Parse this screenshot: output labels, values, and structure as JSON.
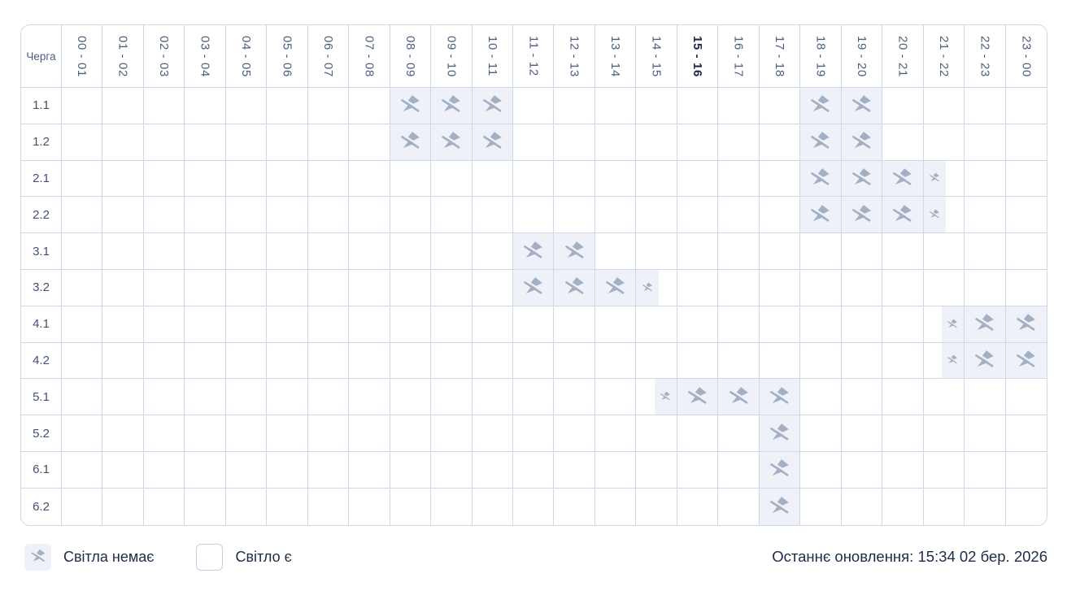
{
  "colors": {
    "grid_border": "#ccd9e8",
    "cell_highlight": "#eef1f7",
    "icon": "#a3afc3",
    "header_text": "#4c5d7d",
    "dark_text": "#1c2b48"
  },
  "table": {
    "corner_label": "Черга",
    "time_slots": [
      "00 - 01",
      "01 - 02",
      "02 - 03",
      "03 - 04",
      "04 - 05",
      "05 - 06",
      "06 - 07",
      "07 - 08",
      "08 - 09",
      "09 - 10",
      "10 - 11",
      "11 - 12",
      "12 - 13",
      "13 - 14",
      "14 - 15",
      "15 - 16",
      "16 - 17",
      "17 - 18",
      "18 - 19",
      "19 - 20",
      "20 - 21",
      "21 - 22",
      "22 - 23",
      "23 - 00"
    ],
    "current_slot": "15 - 16",
    "current_slot_index": 15,
    "rows": [
      {
        "label": "1.1",
        "cells": [
          "",
          "",
          "",
          "",
          "",
          "",
          "",
          "",
          "full",
          "full",
          "full",
          "",
          "",
          "",
          "",
          "",
          "",
          "",
          "full",
          "full",
          "",
          "",
          "",
          ""
        ]
      },
      {
        "label": "1.2",
        "cells": [
          "",
          "",
          "",
          "",
          "",
          "",
          "",
          "",
          "full",
          "full",
          "full",
          "",
          "",
          "",
          "",
          "",
          "",
          "",
          "full",
          "full",
          "",
          "",
          "",
          ""
        ]
      },
      {
        "label": "2.1",
        "cells": [
          "",
          "",
          "",
          "",
          "",
          "",
          "",
          "",
          "",
          "",
          "",
          "",
          "",
          "",
          "",
          "",
          "",
          "",
          "full",
          "full",
          "full",
          "half-left",
          "",
          ""
        ]
      },
      {
        "label": "2.2",
        "cells": [
          "",
          "",
          "",
          "",
          "",
          "",
          "",
          "",
          "",
          "",
          "",
          "",
          "",
          "",
          "",
          "",
          "",
          "",
          "full",
          "full",
          "full",
          "half-left",
          "",
          ""
        ]
      },
      {
        "label": "3.1",
        "cells": [
          "",
          "",
          "",
          "",
          "",
          "",
          "",
          "",
          "",
          "",
          "",
          "full",
          "full",
          "",
          "",
          "",
          "",
          "",
          "",
          "",
          "",
          "",
          "",
          ""
        ]
      },
      {
        "label": "3.2",
        "cells": [
          "",
          "",
          "",
          "",
          "",
          "",
          "",
          "",
          "",
          "",
          "",
          "full",
          "full",
          "full",
          "half-left",
          "",
          "",
          "",
          "",
          "",
          "",
          "",
          "",
          ""
        ]
      },
      {
        "label": "4.1",
        "cells": [
          "",
          "",
          "",
          "",
          "",
          "",
          "",
          "",
          "",
          "",
          "",
          "",
          "",
          "",
          "",
          "",
          "",
          "",
          "",
          "",
          "",
          "half-right",
          "full",
          "full"
        ]
      },
      {
        "label": "4.2",
        "cells": [
          "",
          "",
          "",
          "",
          "",
          "",
          "",
          "",
          "",
          "",
          "",
          "",
          "",
          "",
          "",
          "",
          "",
          "",
          "",
          "",
          "",
          "half-right",
          "full",
          "full"
        ]
      },
      {
        "label": "5.1",
        "cells": [
          "",
          "",
          "",
          "",
          "",
          "",
          "",
          "",
          "",
          "",
          "",
          "",
          "",
          "",
          "half-right",
          "full",
          "full",
          "full",
          "",
          "",
          "",
          "",
          "",
          ""
        ]
      },
      {
        "label": "5.2",
        "cells": [
          "",
          "",
          "",
          "",
          "",
          "",
          "",
          "",
          "",
          "",
          "",
          "",
          "",
          "",
          "",
          "",
          "",
          "full",
          "",
          "",
          "",
          "",
          "",
          ""
        ]
      },
      {
        "label": "6.1",
        "cells": [
          "",
          "",
          "",
          "",
          "",
          "",
          "",
          "",
          "",
          "",
          "",
          "",
          "",
          "",
          "",
          "",
          "",
          "full",
          "",
          "",
          "",
          "",
          "",
          ""
        ]
      },
      {
        "label": "6.2",
        "cells": [
          "",
          "",
          "",
          "",
          "",
          "",
          "",
          "",
          "",
          "",
          "",
          "",
          "",
          "",
          "",
          "",
          "",
          "full",
          "",
          "",
          "",
          "",
          "",
          ""
        ]
      }
    ]
  },
  "legend": {
    "no_light_label": "Світла немає",
    "light_label": "Світло є"
  },
  "footer": {
    "last_update": "Останнє оновлення: 15:34 02 бер. 2026"
  }
}
